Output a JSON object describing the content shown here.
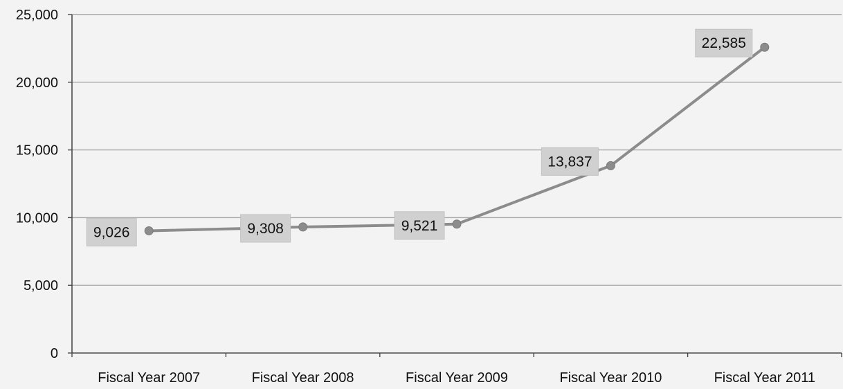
{
  "chart_data": {
    "type": "line",
    "title": "",
    "xlabel": "",
    "ylabel": "",
    "categories": [
      "Fiscal Year 2007",
      "Fiscal Year 2008",
      "Fiscal Year 2009",
      "Fiscal Year 2010",
      "Fiscal Year 2011"
    ],
    "values": [
      9026,
      9308,
      9521,
      13837,
      22585
    ],
    "data_labels": [
      "9,026",
      "9,308",
      "9,521",
      "13,837",
      "22,585"
    ],
    "ylim": [
      0,
      25000
    ],
    "yticks": [
      0,
      5000,
      10000,
      15000,
      20000,
      25000
    ],
    "ytick_labels": [
      "0",
      "5,000",
      "10,000",
      "15,000",
      "20,000",
      "25,000"
    ],
    "grid": true,
    "legend": "none",
    "colors": {
      "line": "#8c8c8c",
      "marker": "#8c8c8c",
      "label_box": "#d0d0d0",
      "gridline": "#a8a8a8",
      "axis": "#4a4a4a",
      "background": "#f3f3f3"
    }
  }
}
